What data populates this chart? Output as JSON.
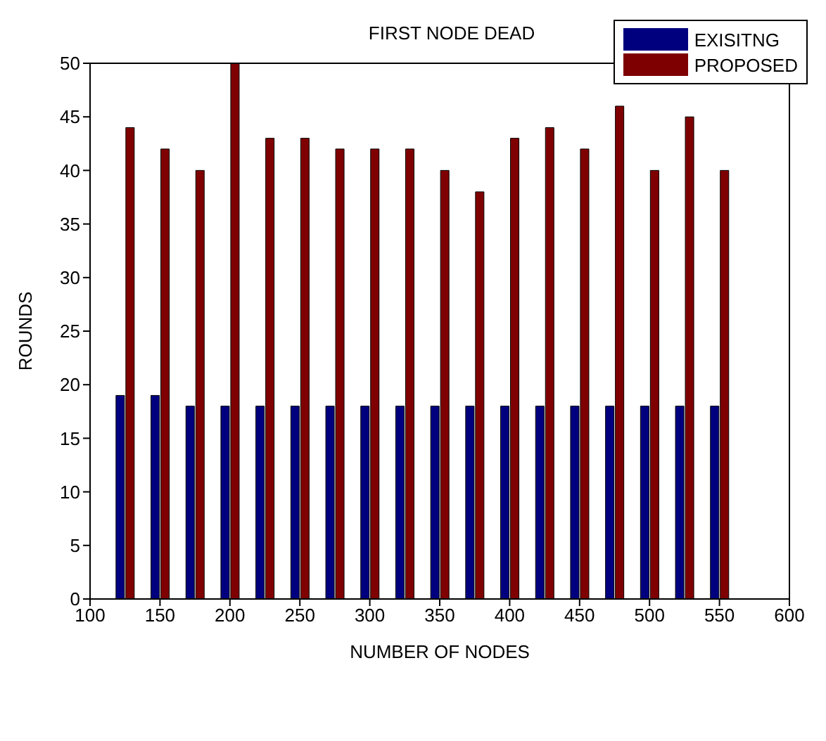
{
  "chart_data": {
    "type": "bar",
    "title": "FIRST NODE DEAD",
    "xlabel": "NUMBER OF NODES",
    "ylabel": "ROUNDS",
    "x": [
      125,
      150,
      175,
      200,
      225,
      250,
      275,
      300,
      325,
      350,
      375,
      400,
      425,
      450,
      475,
      500,
      525,
      550
    ],
    "series": [
      {
        "name": "EXISITNG",
        "color": "#00007f",
        "values": [
          19,
          19,
          18,
          18,
          18,
          18,
          18,
          18,
          18,
          18,
          18,
          18,
          18,
          18,
          18,
          18,
          18,
          18
        ]
      },
      {
        "name": "PROPOSED",
        "color": "#7f0000",
        "values": [
          44,
          42,
          40,
          50,
          43,
          43,
          42,
          42,
          42,
          40,
          38,
          43,
          44,
          42,
          46,
          40,
          45,
          40
        ]
      }
    ],
    "xlim": [
      100,
      600
    ],
    "xticks": [
      100,
      150,
      200,
      250,
      300,
      350,
      400,
      450,
      500,
      550,
      600
    ],
    "ylim": [
      0,
      50
    ],
    "yticks": [
      0,
      5,
      10,
      15,
      20,
      25,
      30,
      35,
      40,
      45,
      50
    ],
    "grid": false,
    "legend": "top right"
  }
}
